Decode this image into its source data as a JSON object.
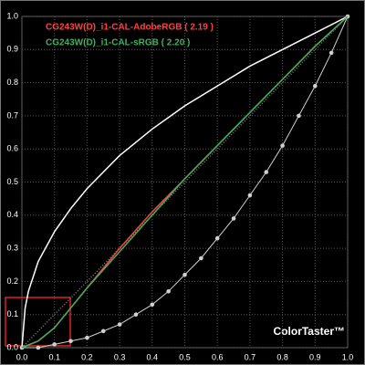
{
  "chart_data": {
    "type": "line",
    "annotation": "ColorTaster™",
    "annotation_color": "#ff3030",
    "xlim": [
      0,
      1
    ],
    "ylim": [
      0,
      1
    ],
    "xticks": [
      {
        "value": 0,
        "label": "0.0"
      },
      0.1,
      0.2,
      0.3,
      0.4,
      0.5,
      0.6,
      0.7,
      0.8,
      0.9,
      {
        "value": 1,
        "label": "1.0"
      }
    ],
    "yticks": [
      {
        "value": 0,
        "label": "0.0"
      },
      0.1,
      0.2,
      0.3,
      0.4,
      0.5,
      0.6,
      0.7,
      0.8,
      0.9,
      {
        "value": 1,
        "label": "1.0"
      }
    ],
    "grid": true,
    "legend": "top-left",
    "series": [
      {
        "color": "#808080",
        "dashed": true,
        "x": [
          0,
          1
        ],
        "values": [
          0,
          1
        ]
      },
      {
        "color": "#ffffff",
        "x": [
          0,
          0.01,
          0.02,
          0.05,
          0.1,
          0.15,
          0.2,
          0.3,
          0.4,
          0.5,
          0.6,
          0.7,
          0.8,
          0.9,
          1
        ],
        "values": [
          0,
          0.12,
          0.17,
          0.26,
          0.35,
          0.42,
          0.48,
          0.58,
          0.66,
          0.73,
          0.79,
          0.85,
          0.9,
          0.95,
          1
        ]
      },
      {
        "color": "#d0d0d0",
        "markers": true,
        "x": [
          0,
          0.05,
          0.1,
          0.15,
          0.2,
          0.25,
          0.3,
          0.35,
          0.4,
          0.45,
          0.5,
          0.55,
          0.6,
          0.65,
          0.7,
          0.75,
          0.8,
          0.85,
          0.9,
          0.95,
          1
        ],
        "values": [
          0,
          0,
          0.01,
          0.02,
          0.03,
          0.05,
          0.07,
          0.1,
          0.13,
          0.17,
          0.22,
          0.27,
          0.33,
          0.39,
          0.46,
          0.53,
          0.61,
          0.7,
          0.79,
          0.89,
          1
        ]
      },
      {
        "name": "CG243W(D)_i1-CAL-AdobeRGB ( 2.19 )",
        "color": "#ff4040",
        "x": [
          0,
          0.05,
          0.1,
          0.15,
          0.2,
          0.3,
          0.4,
          0.5,
          0.6,
          0.7,
          0.8,
          0.9,
          1
        ],
        "values": [
          0,
          0.02,
          0.06,
          0.12,
          0.18,
          0.3,
          0.41,
          0.51,
          0.61,
          0.71,
          0.81,
          0.91,
          1
        ]
      },
      {
        "name": "CG243W(D)_i1-CAL-sRGB ( 2.20 )",
        "color": "#40b060",
        "x": [
          0,
          0.05,
          0.1,
          0.15,
          0.2,
          0.3,
          0.4,
          0.5,
          0.6,
          0.7,
          0.8,
          0.9,
          1
        ],
        "values": [
          0,
          0.02,
          0.06,
          0.12,
          0.18,
          0.29,
          0.4,
          0.51,
          0.61,
          0.71,
          0.81,
          0.91,
          1
        ]
      }
    ]
  }
}
